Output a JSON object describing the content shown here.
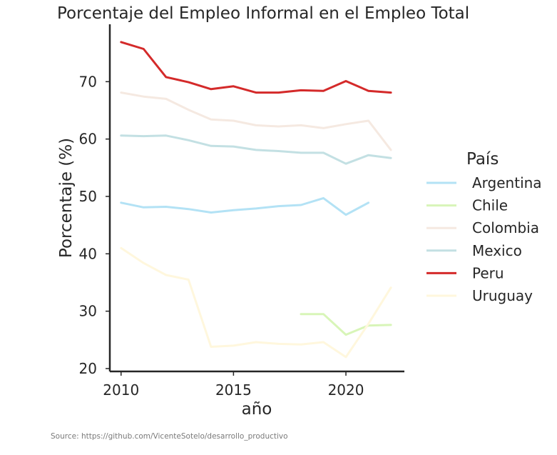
{
  "chart_data": {
    "type": "line",
    "title": "Porcentaje del Empleo Informal en el Empleo Total",
    "xlabel": "año",
    "ylabel": "Porcentaje (%)",
    "xlim": [
      2009.5,
      2022.6
    ],
    "ylim": [
      19.5,
      80
    ],
    "xticks": [
      2010,
      2015,
      2020
    ],
    "yticks": [
      20,
      30,
      40,
      50,
      60,
      70
    ],
    "grid": false,
    "legend": {
      "title": "País",
      "placement": "right"
    },
    "series": [
      {
        "name": "Argentina",
        "color": "#b3e2f5",
        "x": [
          2010,
          2011,
          2012,
          2013,
          2014,
          2015,
          2016,
          2017,
          2018,
          2019,
          2020,
          2021
        ],
        "y": [
          48.9,
          48.1,
          48.2,
          47.8,
          47.2,
          47.6,
          47.9,
          48.3,
          48.5,
          49.7,
          46.8,
          48.9
        ]
      },
      {
        "name": "Chile",
        "color": "#d8f5b8",
        "x": [
          2018,
          2019,
          2020,
          2021,
          2022
        ],
        "y": [
          29.5,
          29.5,
          25.9,
          27.5,
          27.6
        ]
      },
      {
        "name": "Colombia",
        "color": "#f5e9e1",
        "x": [
          2010,
          2011,
          2012,
          2013,
          2014,
          2015,
          2016,
          2017,
          2018,
          2019,
          2020,
          2021,
          2022
        ],
        "y": [
          68.1,
          67.4,
          67.0,
          65.1,
          63.4,
          63.2,
          62.4,
          62.2,
          62.4,
          61.9,
          62.6,
          63.2,
          58.1
        ]
      },
      {
        "name": "Mexico",
        "color": "#c3e0e3",
        "x": [
          2010,
          2011,
          2012,
          2013,
          2014,
          2015,
          2016,
          2017,
          2018,
          2019,
          2020,
          2021,
          2022
        ],
        "y": [
          60.6,
          60.5,
          60.6,
          59.8,
          58.8,
          58.7,
          58.1,
          57.9,
          57.6,
          57.6,
          55.7,
          57.2,
          56.7
        ]
      },
      {
        "name": "Peru",
        "color": "#d42a2a",
        "x": [
          2010,
          2011,
          2012,
          2013,
          2014,
          2015,
          2016,
          2017,
          2018,
          2019,
          2020,
          2021,
          2022
        ],
        "y": [
          76.9,
          75.7,
          70.8,
          69.9,
          68.7,
          69.2,
          68.1,
          68.1,
          68.5,
          68.4,
          70.1,
          68.4,
          68.1
        ]
      },
      {
        "name": "Uruguay",
        "color": "#fff7dd",
        "x": [
          2010,
          2011,
          2012,
          2013,
          2014,
          2015,
          2016,
          2017,
          2018,
          2019,
          2020,
          2021,
          2022
        ],
        "y": [
          41.0,
          38.4,
          36.3,
          35.5,
          23.8,
          24.0,
          24.6,
          24.3,
          24.2,
          24.6,
          22.0,
          27.8,
          34.1
        ]
      }
    ]
  },
  "source_text": "Source: https://github.com/VicenteSotelo/desarrollo_productivo"
}
